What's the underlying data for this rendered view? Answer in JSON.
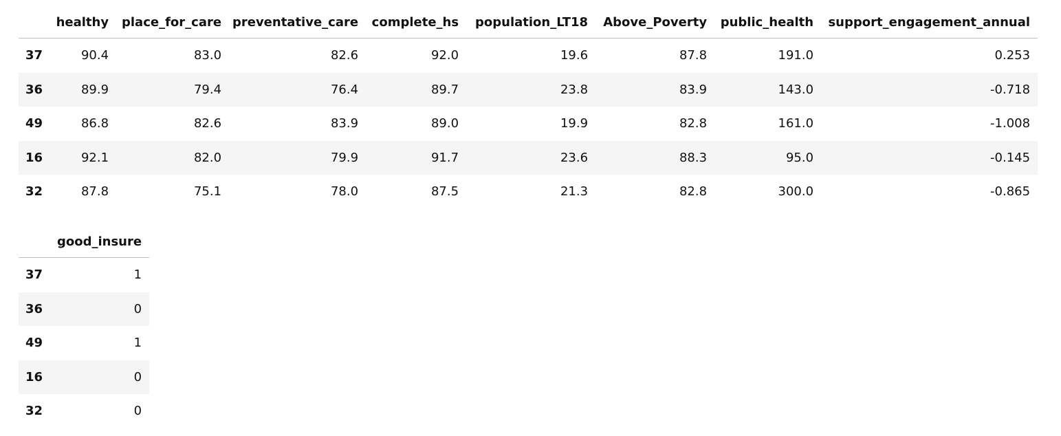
{
  "tables": [
    {
      "columns": [
        "healthy",
        "place_for_care",
        "preventative_care",
        "complete_hs",
        "population_LT18",
        "Above_Poverty",
        "public_health",
        "support_engagement_annual"
      ],
      "index": [
        "37",
        "36",
        "49",
        "16",
        "32"
      ],
      "rows": [
        [
          "90.4",
          "83.0",
          "82.6",
          "92.0",
          "19.6",
          "87.8",
          "191.0",
          "0.253"
        ],
        [
          "89.9",
          "79.4",
          "76.4",
          "89.7",
          "23.8",
          "83.9",
          "143.0",
          "-0.718"
        ],
        [
          "86.8",
          "82.6",
          "83.9",
          "89.0",
          "19.9",
          "82.8",
          "161.0",
          "-1.008"
        ],
        [
          "92.1",
          "82.0",
          "79.9",
          "91.7",
          "23.6",
          "88.3",
          "95.0",
          "-0.145"
        ],
        [
          "87.8",
          "75.1",
          "78.0",
          "87.5",
          "21.3",
          "82.8",
          "300.0",
          "-0.865"
        ]
      ]
    },
    {
      "columns": [
        "good_insure"
      ],
      "index": [
        "37",
        "36",
        "49",
        "16",
        "32"
      ],
      "rows": [
        [
          "1"
        ],
        [
          "0"
        ],
        [
          "1"
        ],
        [
          "0"
        ],
        [
          "0"
        ]
      ]
    }
  ]
}
